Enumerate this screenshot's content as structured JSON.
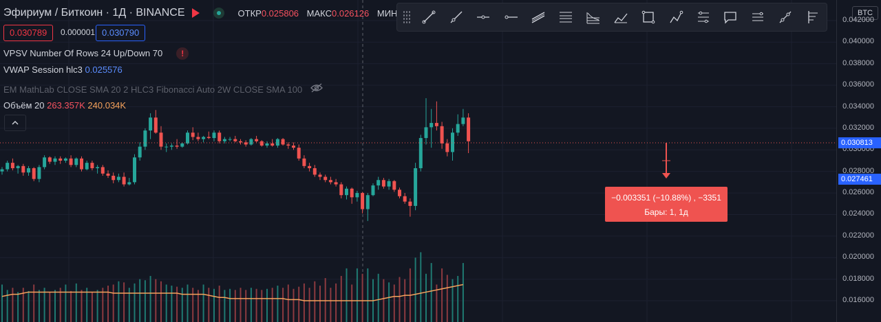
{
  "header": {
    "symbol": "Эфириум / Биткоин · 1Д · BINANCE",
    "ohlc": [
      {
        "label": "ОТКР",
        "value": "0.025806"
      },
      {
        "label": "МАКС",
        "value": "0.026126"
      },
      {
        "label": "МИН",
        "value": ""
      }
    ]
  },
  "prices": {
    "bid": "0.030789",
    "spread": "0.000001",
    "ask": "0.030790"
  },
  "indicators": [
    {
      "name": "VPSV Number Of Rows 24 Up/Down 70"
    },
    {
      "name": "VWAP Session hlc3",
      "value": "0.025576"
    },
    {
      "name": "EM MathLab CLOSE SMA 20 2 HLC3 Fibonacci Auto 2W CLOSE SMA 100"
    },
    {
      "name": "Объём 20",
      "value1": "263.357K",
      "value2": "240.034K"
    }
  ],
  "icons": {
    "warn": "!",
    "collapse": "^",
    "eye": "eye-off-icon"
  },
  "tools": [
    "trend-line-icon",
    "ray-icon",
    "horizontal-ray-icon",
    "horizontal-line-icon",
    "parallel-channel-icon",
    "fib-retracement-icon",
    "fib-fan-icon",
    "brush-icon",
    "rectangle-icon",
    "path-icon",
    "position-icon",
    "callout-icon",
    "projection-icon",
    "measure-icon",
    "anchored-vwap-icon"
  ],
  "axis": {
    "currency": "BTC",
    "ticks": [
      "0.042000",
      "0.040000",
      "0.038000",
      "0.036000",
      "0.034000",
      "0.032000",
      "0.030000",
      "0.028000",
      "0.026000",
      "0.024000",
      "0.022000",
      "0.020000",
      "0.018000",
      "0.016000"
    ],
    "last_price": "0.030813",
    "vwap_price": "0.027461"
  },
  "measure": {
    "line1": "−0.003351 (−10.88%) , −3351",
    "line2": "Бары: 1, 1д"
  },
  "chart_data": {
    "type": "candlestick",
    "ylim": [
      0.0158,
      0.0424
    ],
    "candles": [
      [
        0.028,
        0.0284,
        0.0277,
        0.0282
      ],
      [
        0.0282,
        0.029,
        0.028,
        0.0288
      ],
      [
        0.0288,
        0.0292,
        0.0281,
        0.0283
      ],
      [
        0.0283,
        0.0286,
        0.0278,
        0.0285
      ],
      [
        0.0285,
        0.0287,
        0.0276,
        0.0279
      ],
      [
        0.0279,
        0.0285,
        0.0276,
        0.0283
      ],
      [
        0.0283,
        0.0284,
        0.0271,
        0.0273
      ],
      [
        0.0273,
        0.0286,
        0.027,
        0.0284
      ],
      [
        0.0284,
        0.0295,
        0.0282,
        0.0293
      ],
      [
        0.0293,
        0.0294,
        0.0287,
        0.0289
      ],
      [
        0.0289,
        0.0294,
        0.0286,
        0.0292
      ],
      [
        0.0292,
        0.0294,
        0.0287,
        0.029
      ],
      [
        0.029,
        0.0293,
        0.0288,
        0.0292
      ],
      [
        0.0292,
        0.0295,
        0.0284,
        0.0286
      ],
      [
        0.0286,
        0.0293,
        0.0284,
        0.0292
      ],
      [
        0.0292,
        0.0294,
        0.028,
        0.0282
      ],
      [
        0.0282,
        0.029,
        0.0281,
        0.0288
      ],
      [
        0.0288,
        0.029,
        0.0281,
        0.0283
      ],
      [
        0.0283,
        0.0286,
        0.0278,
        0.0284
      ],
      [
        0.0284,
        0.0286,
        0.0276,
        0.0278
      ],
      [
        0.0278,
        0.0281,
        0.0274,
        0.0276
      ],
      [
        0.0276,
        0.0279,
        0.0269,
        0.0272
      ],
      [
        0.0272,
        0.0278,
        0.027,
        0.0275
      ],
      [
        0.0275,
        0.0279,
        0.0266,
        0.0268
      ],
      [
        0.0268,
        0.0274,
        0.0267,
        0.027
      ],
      [
        0.027,
        0.0296,
        0.0268,
        0.0293
      ],
      [
        0.0293,
        0.0307,
        0.029,
        0.0303
      ],
      [
        0.0303,
        0.032,
        0.03,
        0.0318
      ],
      [
        0.0318,
        0.0334,
        0.031,
        0.033
      ],
      [
        0.033,
        0.0337,
        0.0315,
        0.0316
      ],
      [
        0.0316,
        0.0322,
        0.03,
        0.0303
      ],
      [
        0.0303,
        0.0306,
        0.0298,
        0.0303
      ],
      [
        0.0303,
        0.0306,
        0.03,
        0.0304
      ],
      [
        0.0304,
        0.031,
        0.0301,
        0.0303
      ],
      [
        0.0303,
        0.0307,
        0.0302,
        0.0306
      ],
      [
        0.0306,
        0.0318,
        0.0305,
        0.0316
      ],
      [
        0.0316,
        0.0321,
        0.0309,
        0.0312
      ],
      [
        0.0312,
        0.0316,
        0.0308,
        0.031
      ],
      [
        0.031,
        0.0313,
        0.0307,
        0.0312
      ],
      [
        0.0312,
        0.0317,
        0.031,
        0.0311
      ],
      [
        0.0311,
        0.0318,
        0.0308,
        0.0316
      ],
      [
        0.0316,
        0.0318,
        0.0306,
        0.0308
      ],
      [
        0.0308,
        0.0312,
        0.0306,
        0.031
      ],
      [
        0.031,
        0.0312,
        0.0308,
        0.031
      ],
      [
        0.031,
        0.0313,
        0.0307,
        0.0308
      ],
      [
        0.0308,
        0.031,
        0.0305,
        0.0307
      ],
      [
        0.0307,
        0.0309,
        0.0303,
        0.0305
      ],
      [
        0.0305,
        0.0311,
        0.0304,
        0.031
      ],
      [
        0.031,
        0.0313,
        0.0307,
        0.0308
      ],
      [
        0.0308,
        0.0309,
        0.0303,
        0.0304
      ],
      [
        0.0304,
        0.0308,
        0.0302,
        0.0306
      ],
      [
        0.0306,
        0.031,
        0.0303,
        0.0304
      ],
      [
        0.0304,
        0.0311,
        0.0302,
        0.031
      ],
      [
        0.031,
        0.0311,
        0.0304,
        0.0305
      ],
      [
        0.0305,
        0.0307,
        0.0301,
        0.0304
      ],
      [
        0.0304,
        0.0307,
        0.03,
        0.0302
      ],
      [
        0.0302,
        0.0305,
        0.029,
        0.0292
      ],
      [
        0.0292,
        0.0295,
        0.0283,
        0.0285
      ],
      [
        0.0285,
        0.0288,
        0.028,
        0.0283
      ],
      [
        0.0283,
        0.0286,
        0.0275,
        0.0277
      ],
      [
        0.0277,
        0.0279,
        0.0272,
        0.0275
      ],
      [
        0.0275,
        0.0277,
        0.027,
        0.0272
      ],
      [
        0.0272,
        0.0275,
        0.0268,
        0.027
      ],
      [
        0.027,
        0.0273,
        0.0266,
        0.0268
      ],
      [
        0.0268,
        0.027,
        0.0255,
        0.0258
      ],
      [
        0.0258,
        0.0266,
        0.0254,
        0.0264
      ],
      [
        0.0264,
        0.0265,
        0.025,
        0.0256
      ],
      [
        0.0256,
        0.0262,
        0.0252,
        0.026
      ],
      [
        0.026,
        0.0261,
        0.0241,
        0.0245
      ],
      [
        0.0245,
        0.026,
        0.0234,
        0.0258
      ],
      [
        0.0258,
        0.0269,
        0.0257,
        0.0267
      ],
      [
        0.0267,
        0.0275,
        0.0263,
        0.0272
      ],
      [
        0.0272,
        0.0274,
        0.0264,
        0.0266
      ],
      [
        0.0266,
        0.0273,
        0.0263,
        0.0271
      ],
      [
        0.0271,
        0.0272,
        0.0261,
        0.0263
      ],
      [
        0.0263,
        0.0265,
        0.0255,
        0.0257
      ],
      [
        0.0257,
        0.026,
        0.025,
        0.0252
      ],
      [
        0.0252,
        0.0255,
        0.0238,
        0.0248
      ],
      [
        0.0248,
        0.0288,
        0.0244,
        0.0283
      ],
      [
        0.0283,
        0.0314,
        0.028,
        0.0311
      ],
      [
        0.0311,
        0.0348,
        0.0305,
        0.0321
      ],
      [
        0.0321,
        0.0338,
        0.0302,
        0.0325
      ],
      [
        0.0325,
        0.0345,
        0.0318,
        0.0322
      ],
      [
        0.0322,
        0.0326,
        0.0301,
        0.0306
      ],
      [
        0.0306,
        0.031,
        0.0294,
        0.0298
      ],
      [
        0.0298,
        0.032,
        0.029,
        0.0316
      ],
      [
        0.0316,
        0.0333,
        0.0313,
        0.0324
      ],
      [
        0.0324,
        0.0338,
        0.0322,
        0.033
      ],
      [
        0.033,
        0.0334,
        0.0297,
        0.0308
      ]
    ],
    "volume_ma": [
      0.0164,
      0.0165,
      0.0166,
      0.0166,
      0.0167,
      0.0168,
      0.0168,
      0.0168,
      0.0168,
      0.0168,
      0.0168,
      0.0168,
      0.0168,
      0.0168,
      0.0168,
      0.0168,
      0.0168,
      0.0168,
      0.0168,
      0.0168,
      0.0168,
      0.0167,
      0.0167,
      0.0167,
      0.0167,
      0.0167,
      0.0167,
      0.0167,
      0.0167,
      0.0167,
      0.0167,
      0.0167,
      0.0167,
      0.0167,
      0.0166,
      0.0166,
      0.0166,
      0.0166,
      0.0166,
      0.0165,
      0.0164,
      0.0163,
      0.0163,
      0.0162,
      0.0162,
      0.0162,
      0.0162,
      0.0162,
      0.0162,
      0.0162,
      0.0162,
      0.0162,
      0.0162,
      0.0162,
      0.0161,
      0.0161,
      0.0161,
      0.016,
      0.016,
      0.016,
      0.016,
      0.016,
      0.016,
      0.016,
      0.016,
      0.016,
      0.016,
      0.016,
      0.016,
      0.016,
      0.016,
      0.0161,
      0.0162,
      0.0163,
      0.0164,
      0.0164,
      0.0165,
      0.0165,
      0.0166,
      0.0167,
      0.0168,
      0.0169,
      0.017,
      0.0171,
      0.0172,
      0.0173,
      0.0174,
      0.0175
    ],
    "volumes": [
      0.0175,
      0.017,
      0.0172,
      0.0168,
      0.0172,
      0.0169,
      0.0175,
      0.017,
      0.0172,
      0.0168,
      0.017,
      0.0172,
      0.0175,
      0.0169,
      0.0176,
      0.017,
      0.0172,
      0.0168,
      0.017,
      0.0172,
      0.0174,
      0.0175,
      0.0178,
      0.0177,
      0.0172,
      0.0176,
      0.018,
      0.0179,
      0.0183,
      0.018,
      0.0178,
      0.0175,
      0.0174,
      0.0173,
      0.0172,
      0.0175,
      0.0172,
      0.017,
      0.0175,
      0.0172,
      0.0171,
      0.0174,
      0.017,
      0.0171,
      0.017,
      0.0172,
      0.017,
      0.0172,
      0.0171,
      0.017,
      0.0171,
      0.0172,
      0.0174,
      0.0172,
      0.0175,
      0.0171,
      0.0173,
      0.0176,
      0.0172,
      0.0178,
      0.0174,
      0.0181,
      0.0172,
      0.0176,
      0.0183,
      0.019,
      0.0175,
      0.019,
      0.0185,
      0.019,
      0.018,
      0.0185,
      0.018,
      0.0177,
      0.0175,
      0.0182,
      0.018,
      0.019,
      0.02,
      0.0205,
      0.0185,
      0.0195,
      0.0175,
      0.019,
      0.0184,
      0.018,
      0.0183,
      0.0195
    ]
  }
}
